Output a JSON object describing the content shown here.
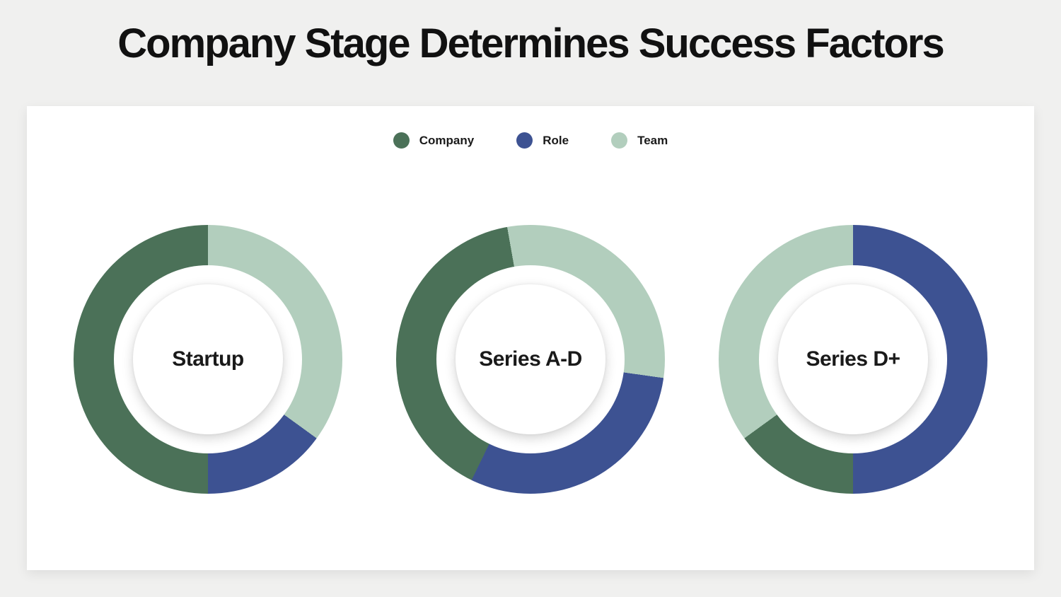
{
  "page": {
    "title": "Company Stage Determines Success Factors",
    "background_color": "#f0f0ef",
    "card_color": "#ffffff",
    "title_color": "#111111"
  },
  "legend": [
    {
      "label": "Company",
      "color": "#4b7158"
    },
    {
      "label": "Role",
      "color": "#3d5292"
    },
    {
      "label": "Team",
      "color": "#b2cebd"
    }
  ],
  "chart_data": [
    {
      "type": "pie",
      "title": "Startup",
      "rotation_deg": 0,
      "slices_clockwise": [
        {
          "label": "Team",
          "value": 35,
          "color": "#b2cebd"
        },
        {
          "label": "Role",
          "value": 15,
          "color": "#3d5292"
        },
        {
          "label": "Company",
          "value": 50,
          "color": "#4b7158"
        }
      ]
    },
    {
      "type": "pie",
      "title": "Series A-D",
      "rotation_deg": -10,
      "slices_clockwise": [
        {
          "label": "Team",
          "value": 30,
          "color": "#b2cebd"
        },
        {
          "label": "Role",
          "value": 30,
          "color": "#3d5292"
        },
        {
          "label": "Company",
          "value": 40,
          "color": "#4b7158"
        }
      ]
    },
    {
      "type": "pie",
      "title": "Series D+",
      "rotation_deg": 0,
      "slices_clockwise": [
        {
          "label": "Role",
          "value": 50,
          "color": "#3d5292"
        },
        {
          "label": "Company",
          "value": 15,
          "color": "#4b7158"
        },
        {
          "label": "Team",
          "value": 35,
          "color": "#b2cebd"
        }
      ]
    }
  ]
}
